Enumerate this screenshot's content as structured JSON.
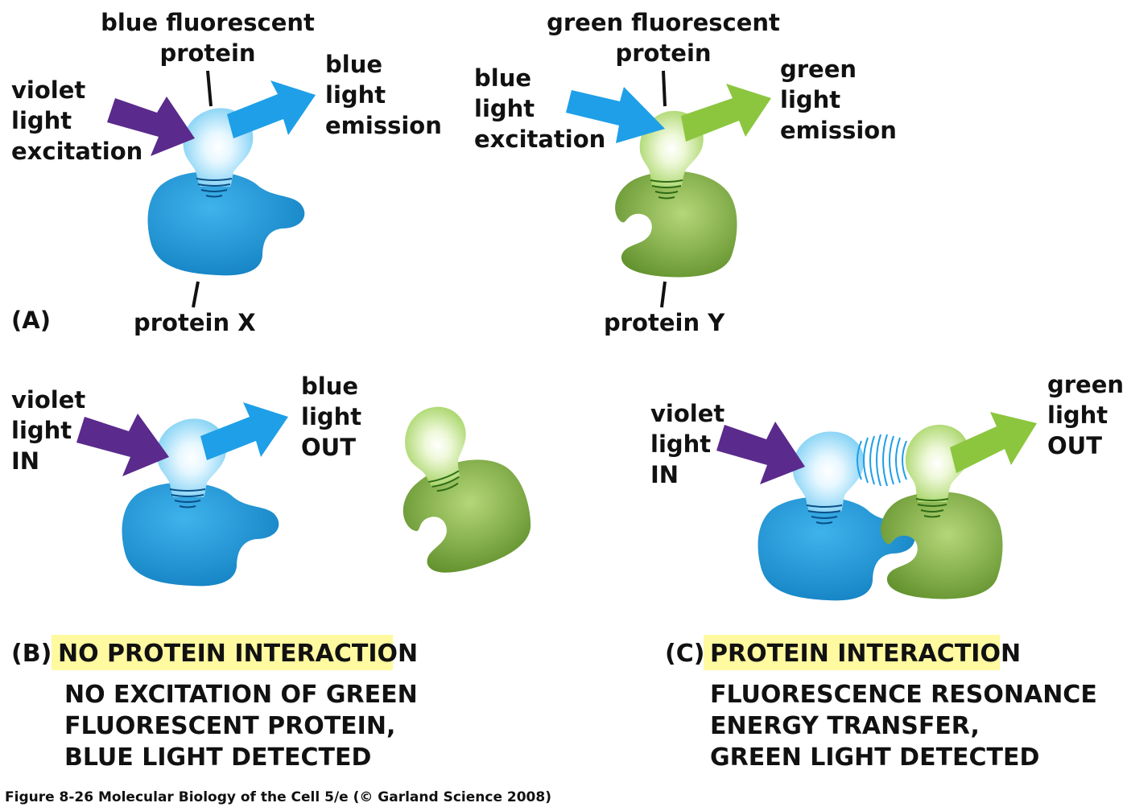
{
  "panel_a": {
    "letter": "(A)",
    "blue_fp_label": [
      "blue fluorescent",
      "protein"
    ],
    "violet_excitation": [
      "violet",
      "light",
      "excitation"
    ],
    "blue_emission": [
      "blue",
      "light",
      "emission"
    ],
    "protein_x": "protein X",
    "green_fp_label": [
      "green fluorescent",
      "protein"
    ],
    "blue_excitation": [
      "blue",
      "light",
      "excitation"
    ],
    "green_emission": [
      "green",
      "light",
      "emission"
    ],
    "protein_y": "protein Y"
  },
  "panel_b": {
    "letter": "(B)",
    "title": "NO PROTEIN INTERACTION",
    "light_in": [
      "violet",
      "light",
      "IN"
    ],
    "light_out": [
      "blue",
      "light",
      "OUT"
    ],
    "description": [
      "NO EXCITATION OF GREEN",
      "FLUORESCENT PROTEIN,",
      "BLUE LIGHT DETECTED"
    ]
  },
  "panel_c": {
    "letter": "(C)",
    "title": "PROTEIN INTERACTION",
    "light_in": [
      "violet",
      "light",
      "IN"
    ],
    "light_out": [
      "green",
      "light",
      "OUT"
    ],
    "description": [
      "FLUORESCENCE RESONANCE",
      "ENERGY TRANSFER,",
      "GREEN LIGHT DETECTED"
    ]
  },
  "footer": "Figure 8-26  Molecular Biology of the Cell 5/e (© Garland Science 2008)",
  "colors": {
    "violet": "#5a2a8c",
    "blue_arrow": "#1e9fe8",
    "green_arrow": "#8cc63f",
    "protein_x": "#1b8fd0",
    "protein_y": "#79a83a",
    "highlight": "#fff9a0"
  }
}
